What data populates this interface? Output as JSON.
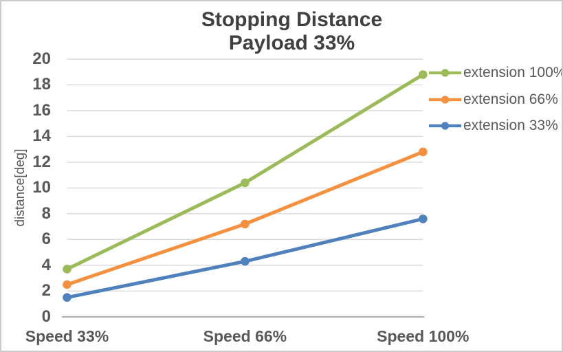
{
  "window": {
    "background": "#FFFFFF",
    "border_color": "#CBCBCB"
  },
  "chart_data": {
    "type": "line",
    "title": "Stopping Distance",
    "subtitle": "Payload 33%",
    "ylabel": "distance[deg]",
    "xlabel": "",
    "categories": [
      "Speed 33%",
      "Speed 66%",
      "Speed 100%"
    ],
    "series": [
      {
        "name": "extension 100%",
        "color": "#9BBB59",
        "values": [
          3.7,
          10.4,
          18.8
        ]
      },
      {
        "name": "extension 66%",
        "color": "#F5913E",
        "values": [
          2.5,
          7.2,
          12.8
        ]
      },
      {
        "name": "extension 33%",
        "color": "#4F81BD",
        "values": [
          1.5,
          4.3,
          7.6
        ]
      }
    ],
    "ylim": [
      0,
      20
    ],
    "yticks": [
      0,
      2,
      4,
      6,
      8,
      10,
      12,
      14,
      16,
      18,
      20
    ],
    "grid": "horizontal",
    "legend_position": "right",
    "marker": "circle",
    "line_style": "line-with-markers",
    "colors": {
      "grid": "#D9D9D9",
      "axis_line": "#A6A6A6",
      "text": "#595959",
      "title": "#404040"
    }
  }
}
